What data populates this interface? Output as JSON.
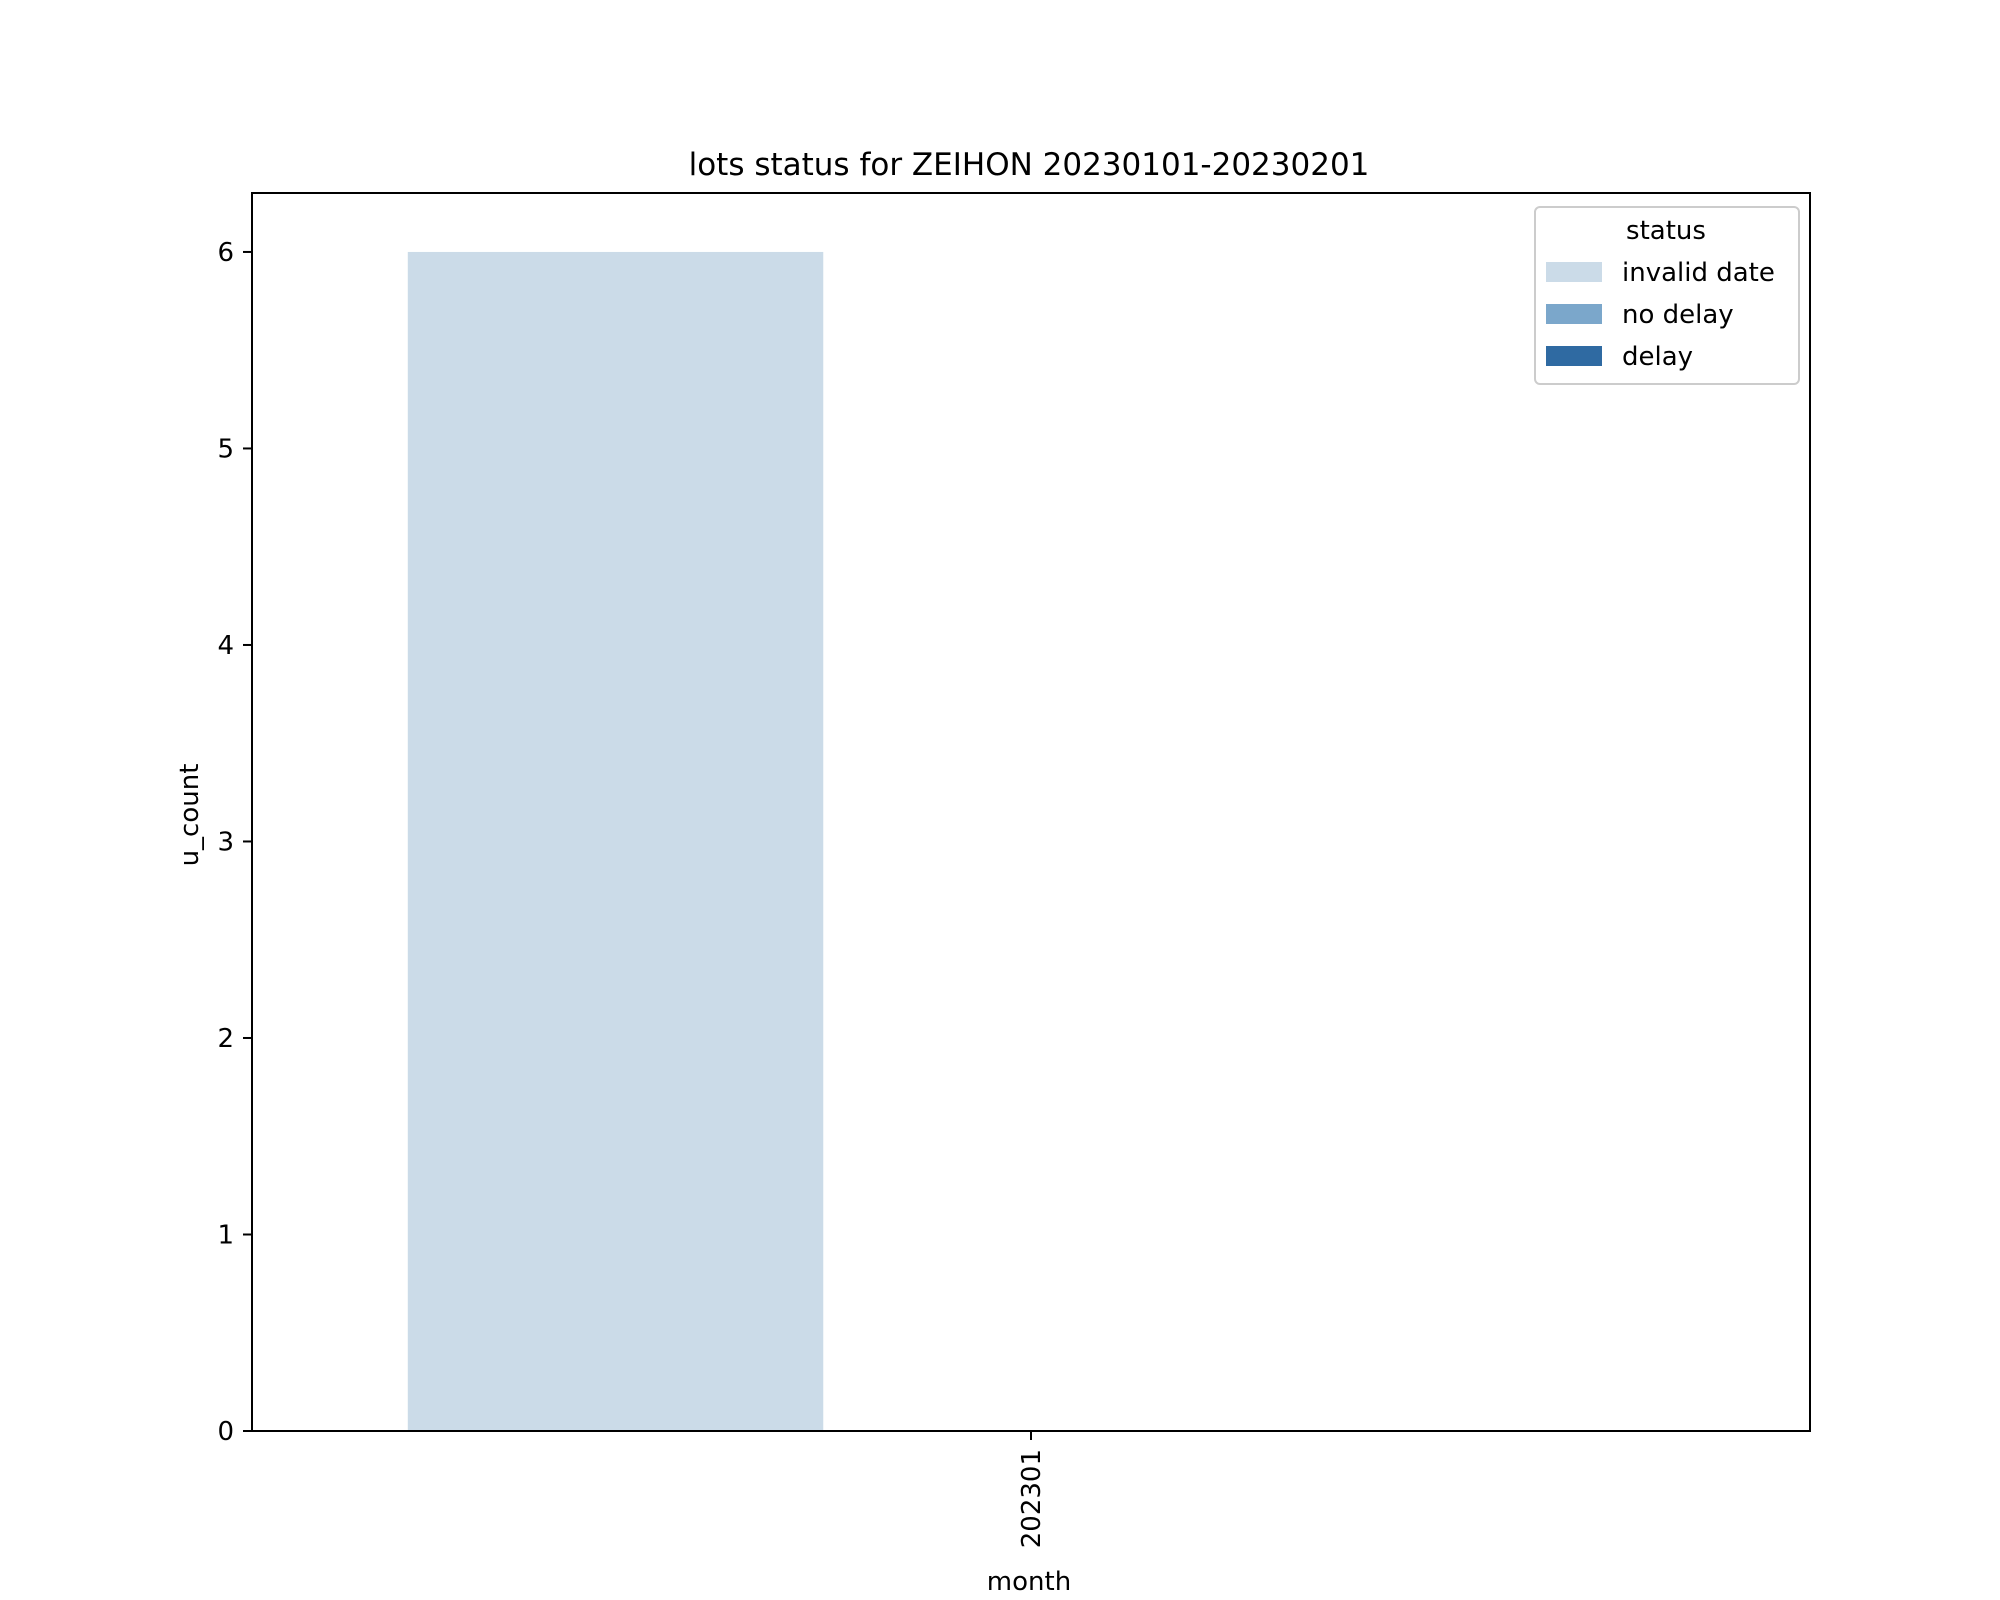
{
  "chart_data": {
    "type": "bar",
    "title": "lots status for ZEIHON 20230101-20230201",
    "xlabel": "month",
    "ylabel": "u_count",
    "categories": [
      "202301"
    ],
    "series": [
      {
        "name": "invalid date",
        "color": "#cbdbe8",
        "values": [
          6
        ]
      },
      {
        "name": "no delay",
        "color": "#7ba7cb",
        "values": [
          0
        ]
      },
      {
        "name": "delay",
        "color": "#2f6aa2",
        "values": [
          0
        ]
      }
    ],
    "ylim": [
      0,
      6.3
    ],
    "yticks": [
      0,
      1,
      2,
      3,
      4,
      5,
      6
    ],
    "xtick_rotation": "vertical",
    "grid": false,
    "legend": {
      "title": "status",
      "placement": "upper right"
    }
  }
}
